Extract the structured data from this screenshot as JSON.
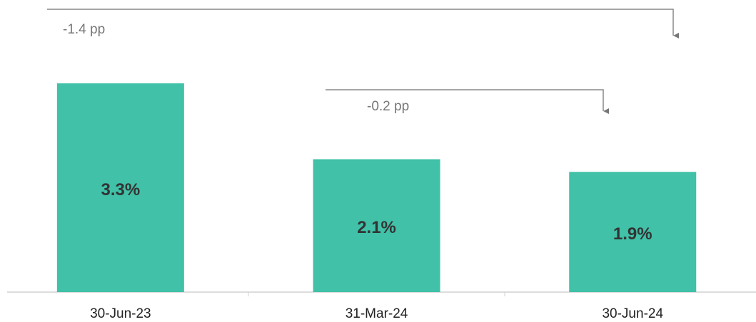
{
  "chart_data": {
    "type": "bar",
    "categories": [
      "30-Jun-23",
      "31-Mar-24",
      "30-Jun-24"
    ],
    "values": [
      3.3,
      2.1,
      1.9
    ],
    "value_labels": [
      "3.3%",
      "2.1%",
      "1.9%"
    ],
    "color": "#40c1a8",
    "annotations": [
      "-1.4 pp",
      "-0.2 pp"
    ]
  }
}
